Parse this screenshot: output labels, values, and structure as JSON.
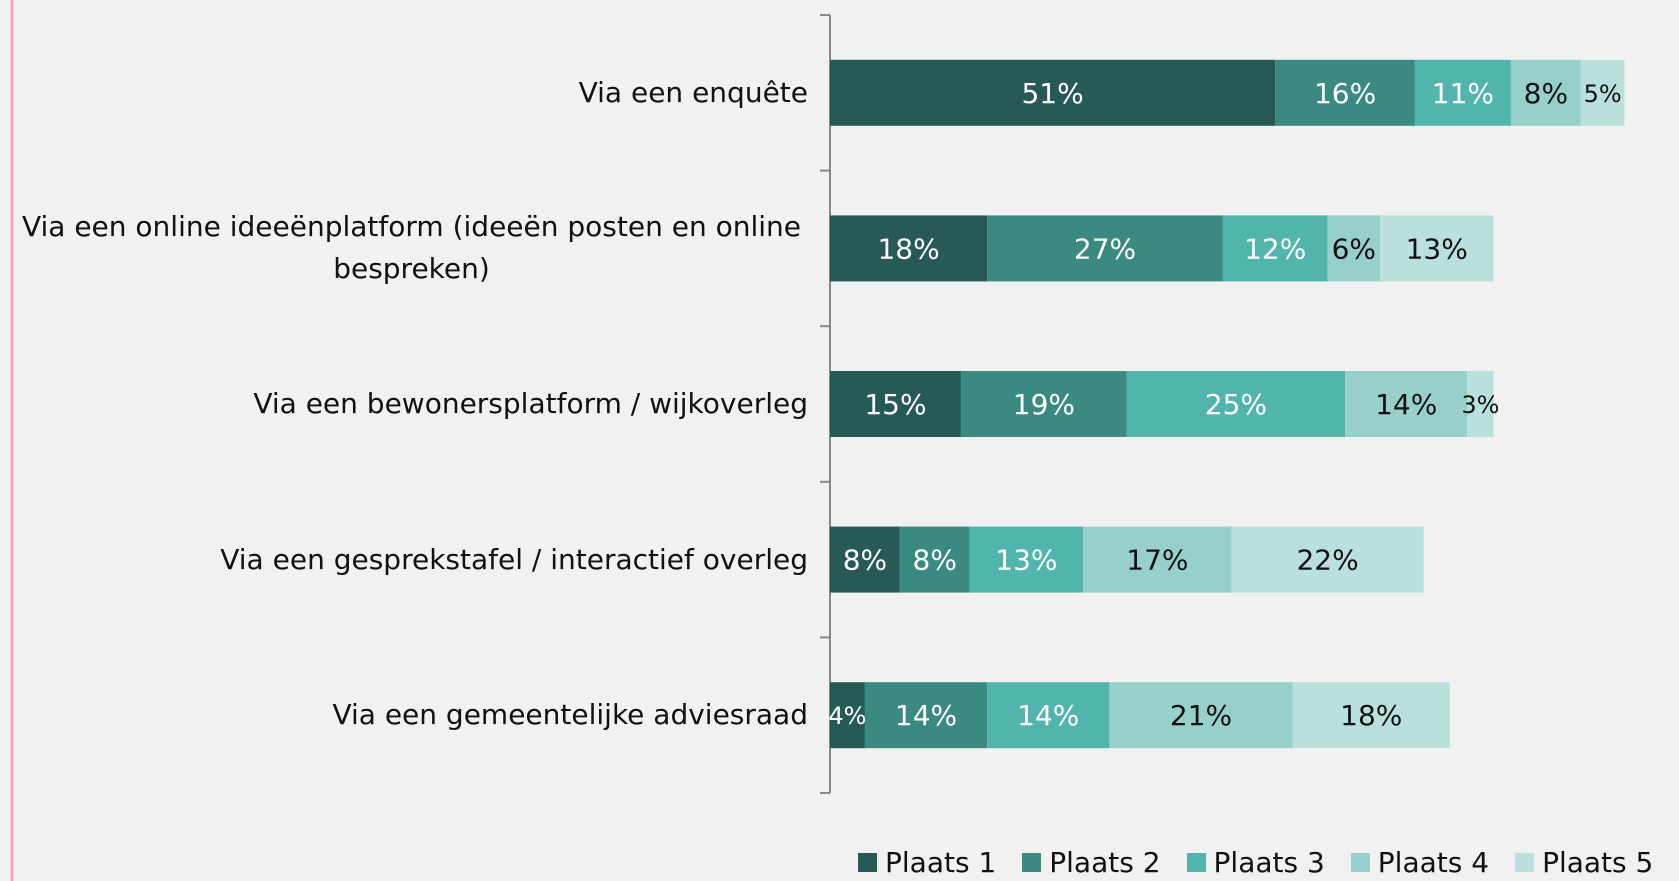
{
  "chart_data": {
    "type": "stacked_bar_horizontal",
    "categories": [
      "Via een enquête",
      "Via een online ideeënplatform (ideeën posten en online bespreken)",
      "Via een bewonersplatform / wijkoverleg",
      "Via een gesprekstafel / interactief overleg",
      "Via een gemeentelijke adviesraad"
    ],
    "series": [
      {
        "name": "Plaats 1",
        "color": "#275a57",
        "values": [
          51,
          18,
          15,
          8,
          4
        ],
        "value_labels": [
          "51%",
          "18%",
          "15%",
          "8%",
          "4%"
        ]
      },
      {
        "name": "Plaats 2",
        "color": "#3a8a82",
        "values": [
          16,
          27,
          19,
          8,
          14
        ],
        "value_labels": [
          "16%",
          "27%",
          "19%",
          "8%",
          "14%"
        ]
      },
      {
        "name": "Plaats 3",
        "color": "#52b5ad",
        "values": [
          11,
          12,
          25,
          13,
          14
        ],
        "value_labels": [
          "11%",
          "12%",
          "25%",
          "13%",
          "14%"
        ]
      },
      {
        "name": "Plaats 4",
        "color": "#97d0ca",
        "values": [
          8,
          6,
          14,
          17,
          21
        ],
        "value_labels": [
          "8%",
          "6%",
          "14%",
          "17%",
          "21%"
        ]
      },
      {
        "name": "Plaats 5",
        "color": "#b9e0dc",
        "values": [
          5,
          13,
          3,
          22,
          18
        ],
        "value_labels": [
          "5%",
          "13%",
          "3%",
          "22%",
          "18%"
        ]
      }
    ],
    "legend": "bottom"
  }
}
